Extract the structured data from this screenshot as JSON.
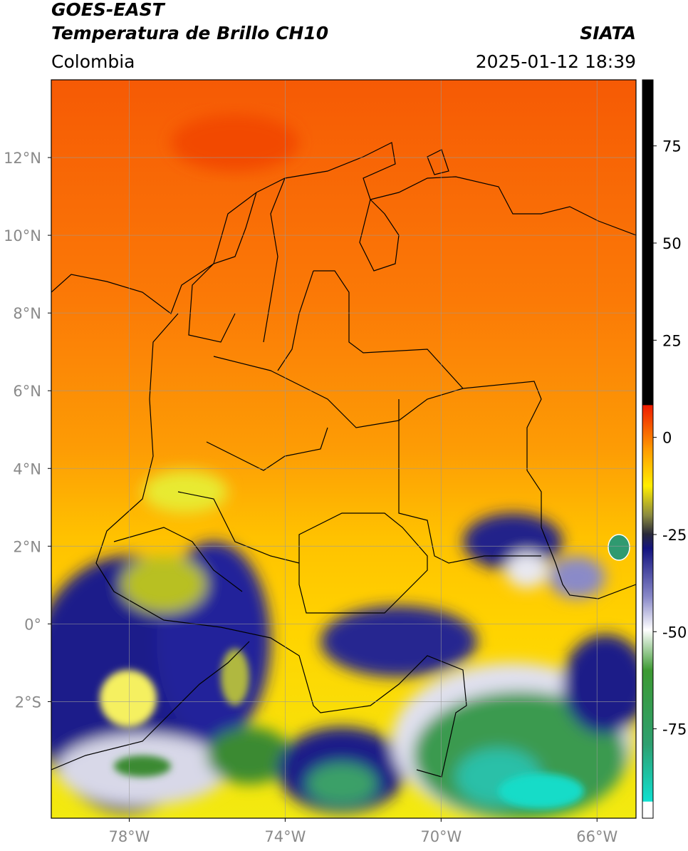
{
  "header": {
    "title": "GOES-EAST",
    "subtitle": "Temperatura de Brillo CH10",
    "source": "SIATA",
    "region": "Colombia",
    "timestamp": "2025-01-12 18:39"
  },
  "map": {
    "xlim": [
      -80,
      -65
    ],
    "ylim": [
      -5,
      14
    ],
    "xticks": [
      {
        "value": -78,
        "label": "78°W"
      },
      {
        "value": -74,
        "label": "74°W"
      },
      {
        "value": -70,
        "label": "70°W"
      },
      {
        "value": -66,
        "label": "66°W"
      }
    ],
    "yticks": [
      {
        "value": 12,
        "label": "12°N"
      },
      {
        "value": 10,
        "label": "10°N"
      },
      {
        "value": 8,
        "label": "8°N"
      },
      {
        "value": 6,
        "label": "6°N"
      },
      {
        "value": 4,
        "label": "4°N"
      },
      {
        "value": 2,
        "label": "2°N"
      },
      {
        "value": 0,
        "label": "0°"
      },
      {
        "value": -2,
        "label": "2°S"
      }
    ],
    "grid": true
  },
  "colorbar": {
    "lim": [
      -98,
      92
    ],
    "ticks": [
      75,
      50,
      25,
      0,
      -25,
      -50,
      -75
    ]
  }
}
